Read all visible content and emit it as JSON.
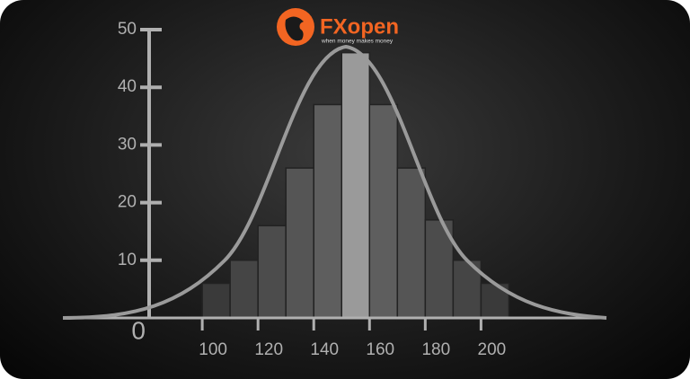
{
  "brand": {
    "name": "FXopen",
    "tagline": "when money makes money"
  },
  "chart_data": {
    "type": "histogram",
    "bins": [
      100,
      110,
      120,
      130,
      140,
      150,
      160,
      170,
      180,
      190,
      200,
      210
    ],
    "values": [
      6,
      10,
      16,
      26,
      37,
      46,
      37,
      26,
      17,
      10,
      6
    ],
    "colors": [
      "#3a3a3a",
      "#454545",
      "#4c4c4c",
      "#555555",
      "#5e5e5e",
      "#9a9a9a",
      "#5e5e5e",
      "#555555",
      "#4c4c4c",
      "#454545",
      "#3a3a3a"
    ],
    "xlim": [
      50,
      245
    ],
    "xticks": [
      100,
      120,
      140,
      160,
      180,
      200
    ],
    "ylim": [
      0,
      50
    ],
    "yticks": [
      0,
      10,
      20,
      30,
      40,
      50
    ],
    "axis_color": "#b0b0b0"
  }
}
